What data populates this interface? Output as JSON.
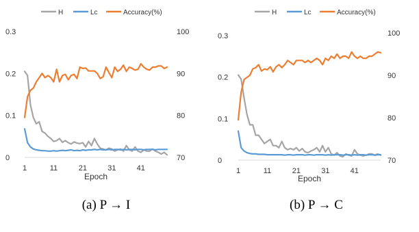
{
  "chart_data": [
    {
      "type": "line",
      "caption": "(a)  P → I",
      "xlabel": "Epoch",
      "x_ticks": [
        1,
        11,
        21,
        31,
        41
      ],
      "xlim": [
        1,
        50
      ],
      "ylim_left": [
        0,
        0.3
      ],
      "y_ticks_left": [
        "0",
        "0.1",
        "0.2",
        "0.3"
      ],
      "ylim_right": [
        70,
        100
      ],
      "y_ticks_right": [
        "70",
        "80",
        "90",
        "100"
      ],
      "legend_position": "top",
      "series": [
        {
          "name": "H",
          "axis": "left",
          "color": "#a5a5a5",
          "values": [
            0.205,
            0.195,
            0.125,
            0.095,
            0.08,
            0.085,
            0.062,
            0.058,
            0.05,
            0.045,
            0.038,
            0.04,
            0.045,
            0.036,
            0.04,
            0.035,
            0.032,
            0.037,
            0.034,
            0.033,
            0.035,
            0.025,
            0.038,
            0.028,
            0.045,
            0.032,
            0.022,
            0.02,
            0.018,
            0.022,
            0.02,
            0.015,
            0.018,
            0.02,
            0.015,
            0.028,
            0.018,
            0.015,
            0.025,
            0.015,
            0.012,
            0.018,
            0.015,
            0.015,
            0.02,
            0.015,
            0.012,
            0.008,
            0.012,
            0.006
          ]
        },
        {
          "name": "Lc",
          "axis": "left",
          "color": "#5b9bd5",
          "values": [
            0.068,
            0.035,
            0.025,
            0.02,
            0.018,
            0.017,
            0.016,
            0.016,
            0.015,
            0.015,
            0.016,
            0.015,
            0.016,
            0.017,
            0.016,
            0.017,
            0.018,
            0.016,
            0.017,
            0.016,
            0.018,
            0.017,
            0.018,
            0.018,
            0.019,
            0.018,
            0.019,
            0.018,
            0.018,
            0.019,
            0.018,
            0.019,
            0.019,
            0.018,
            0.019,
            0.018,
            0.019,
            0.019,
            0.018,
            0.019,
            0.019,
            0.018,
            0.019,
            0.019,
            0.019,
            0.018,
            0.019,
            0.019,
            0.019,
            0.019
          ]
        },
        {
          "name": "Accuracy(%)",
          "axis": "right",
          "color": "#ed7d31",
          "values": [
            79.5,
            84.5,
            86.0,
            86.5,
            88.0,
            89.0,
            90.0,
            89.0,
            89.5,
            89.0,
            88.0,
            91.0,
            88.0,
            89.5,
            89.8,
            88.5,
            89.5,
            89.8,
            88.8,
            91.5,
            91.2,
            91.3,
            90.6,
            90.6,
            90.6,
            90.0,
            88.8,
            89.2,
            91.5,
            90.2,
            89.0,
            91.5,
            90.5,
            91.0,
            92.0,
            90.5,
            91.5,
            91.2,
            90.8,
            91.0,
            92.3,
            91.5,
            91.0,
            90.8,
            91.5,
            91.5,
            91.8,
            91.8,
            91.2,
            91.5
          ]
        }
      ]
    },
    {
      "type": "line",
      "caption": "(b)  P → C",
      "xlabel": "Epoch",
      "x_ticks": [
        1,
        11,
        21,
        31,
        41
      ],
      "xlim": [
        1,
        50
      ],
      "ylim_left": [
        0,
        0.3
      ],
      "y_ticks_left": [
        "0",
        "0.1",
        "0.2",
        "0.3"
      ],
      "ylim_right": [
        70,
        100
      ],
      "y_ticks_right": [
        "70",
        "80",
        "90",
        "100"
      ],
      "legend_position": "top",
      "series": [
        {
          "name": "H",
          "axis": "left",
          "color": "#a5a5a5",
          "values": [
            0.205,
            0.195,
            0.15,
            0.11,
            0.085,
            0.085,
            0.06,
            0.06,
            0.05,
            0.04,
            0.045,
            0.05,
            0.035,
            0.035,
            0.03,
            0.045,
            0.03,
            0.025,
            0.028,
            0.025,
            0.03,
            0.022,
            0.028,
            0.02,
            0.018,
            0.022,
            0.025,
            0.03,
            0.02,
            0.035,
            0.02,
            0.03,
            0.015,
            0.012,
            0.018,
            0.01,
            0.008,
            0.015,
            0.012,
            0.01,
            0.025,
            0.015,
            0.012,
            0.01,
            0.012,
            0.015,
            0.015,
            0.012,
            0.015,
            0.012
          ]
        },
        {
          "name": "Lc",
          "axis": "left",
          "color": "#5b9bd5",
          "values": [
            0.07,
            0.03,
            0.022,
            0.018,
            0.016,
            0.015,
            0.015,
            0.014,
            0.014,
            0.014,
            0.013,
            0.013,
            0.013,
            0.013,
            0.013,
            0.013,
            0.012,
            0.013,
            0.013,
            0.012,
            0.013,
            0.013,
            0.013,
            0.012,
            0.013,
            0.013,
            0.012,
            0.013,
            0.013,
            0.013,
            0.012,
            0.013,
            0.012,
            0.013,
            0.013,
            0.013,
            0.012,
            0.013,
            0.013,
            0.012,
            0.013,
            0.012,
            0.013,
            0.013,
            0.012,
            0.013,
            0.013,
            0.012,
            0.013,
            0.013
          ]
        },
        {
          "name": "Accuracy(%)",
          "axis": "right",
          "color": "#ed7d31",
          "values": [
            79.5,
            86.0,
            89.0,
            89.5,
            90.0,
            91.5,
            91.8,
            92.5,
            91.0,
            91.5,
            91.3,
            92.0,
            90.8,
            92.0,
            92.5,
            91.8,
            92.5,
            93.5,
            93.0,
            92.5,
            93.5,
            93.5,
            93.5,
            93.0,
            93.5,
            93.0,
            93.5,
            94.0,
            93.5,
            92.5,
            94.0,
            93.5,
            94.5,
            94.0,
            95.0,
            94.0,
            94.5,
            94.5,
            94.0,
            95.5,
            94.5,
            94.0,
            94.5,
            94.0,
            94.0,
            94.5,
            94.5,
            95.0,
            95.5,
            95.3
          ]
        }
      ]
    }
  ]
}
